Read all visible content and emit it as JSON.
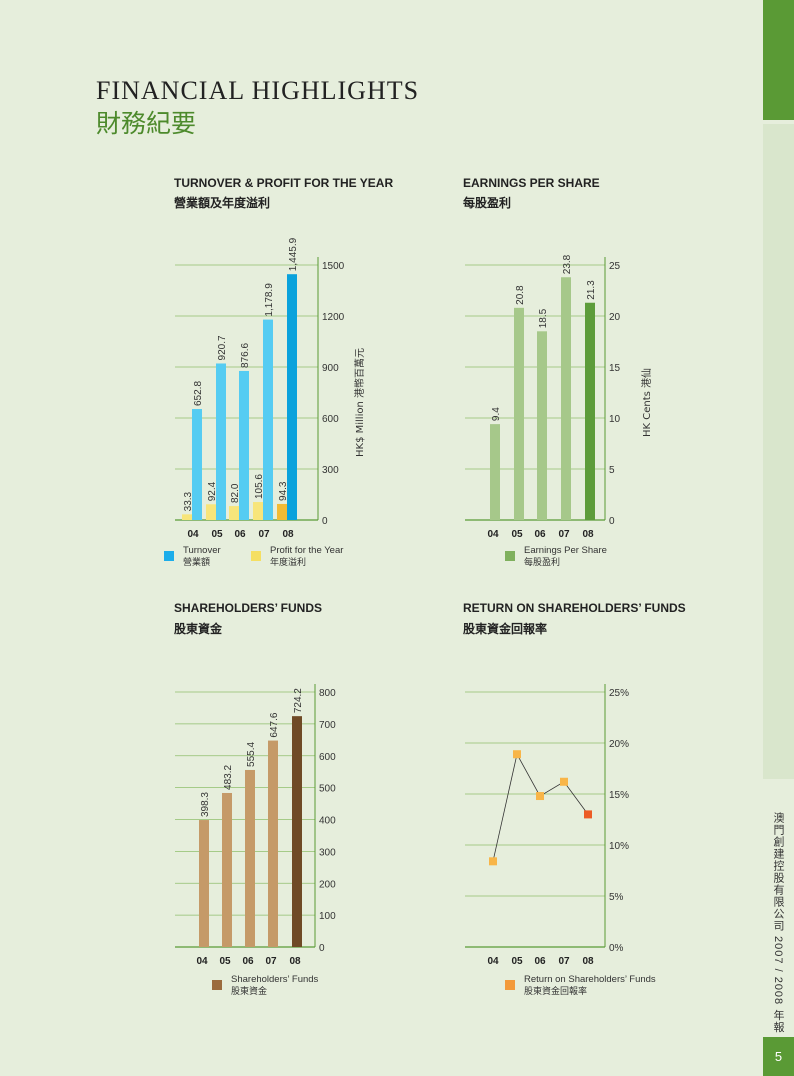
{
  "page": {
    "title_en": "FINANCIAL HIGHLIGHTS",
    "title_zh": "財務紀要",
    "sidebar_text": "澳門創建控股有限公司  2007 / 2008 年報",
    "page_number": "5"
  },
  "colors": {
    "green": "#5a9a35",
    "turnover": "#55ccf2",
    "turnover_last": "#0aa2dc",
    "profit": "#f7e57a",
    "profit_last": "#f2bb34",
    "eps": "#a6c88a",
    "eps_last": "#5d9c3a",
    "funds": "#c59a68",
    "funds_last": "#6f4a26",
    "roe": "#f8b548",
    "roe_last": "#ec5b25"
  },
  "chart_data": [
    {
      "id": "turnover",
      "type": "bar",
      "title": "TURNOVER & PROFIT FOR THE YEAR",
      "title_zh": "營業額及年度溢利",
      "categories": [
        "04",
        "05",
        "06",
        "07",
        "08"
      ],
      "ylabel": "HK$ Million 港幣百萬元",
      "ylim": [
        0,
        1500
      ],
      "yticks": [
        "0",
        "300",
        "600",
        "900",
        "1200",
        "1500"
      ],
      "series": [
        {
          "name": "Turnover",
          "name_zh": "營業額",
          "values": [
            652.8,
            920.7,
            876.6,
            1178.9,
            1445.9
          ],
          "labels": [
            "652.8",
            "920.7",
            "876.6",
            "1,178.9",
            "1,445.9"
          ]
        },
        {
          "name": "Profit for the Year",
          "name_zh": "年度溢利",
          "values": [
            33.3,
            92.4,
            82.0,
            105.6,
            94.3
          ],
          "labels": [
            "33.3",
            "92.4",
            "82.0",
            "105.6",
            "94.3"
          ]
        }
      ]
    },
    {
      "id": "eps",
      "type": "bar",
      "title": "EARNINGS PER SHARE",
      "title_zh": "每股盈利",
      "categories": [
        "04",
        "05",
        "06",
        "07",
        "08"
      ],
      "ylabel": "HK Cents 港仙",
      "ylim": [
        0,
        25
      ],
      "yticks": [
        "0",
        "5",
        "10",
        "15",
        "20",
        "25"
      ],
      "series": [
        {
          "name": "Earnings Per Share",
          "name_zh": "每股盈利",
          "values": [
            9.4,
            20.8,
            18.5,
            23.8,
            21.3
          ],
          "labels": [
            "9.4",
            "20.8",
            "18.5",
            "23.8",
            "21.3"
          ]
        }
      ]
    },
    {
      "id": "funds",
      "type": "bar",
      "title": "SHAREHOLDERS’ FUNDS",
      "title_zh": "股東資金",
      "categories": [
        "04",
        "05",
        "06",
        "07",
        "08"
      ],
      "ylim": [
        0,
        800
      ],
      "yticks": [
        "0",
        "100",
        "200",
        "300",
        "400",
        "500",
        "600",
        "700",
        "800"
      ],
      "series": [
        {
          "name": "Shareholders’ Funds",
          "name_zh": "股東資金",
          "values": [
            398.3,
            483.2,
            555.4,
            647.6,
            724.2
          ],
          "labels": [
            "398.3",
            "483.2",
            "555.4",
            "647.6",
            "724.2"
          ]
        }
      ]
    },
    {
      "id": "roe",
      "type": "line",
      "title": "RETURN ON SHAREHOLDERS’ FUNDS",
      "title_zh": "股東資金回報率",
      "categories": [
        "04",
        "05",
        "06",
        "07",
        "08"
      ],
      "ylim": [
        0,
        25
      ],
      "yticks": [
        "0%",
        "5%",
        "10%",
        "15%",
        "20%",
        "25%"
      ],
      "series": [
        {
          "name": "Return on Shareholders’ Funds",
          "name_zh": "股東資金回報率",
          "values": [
            8.4,
            18.9,
            14.8,
            16.2,
            13.0
          ]
        }
      ]
    }
  ]
}
